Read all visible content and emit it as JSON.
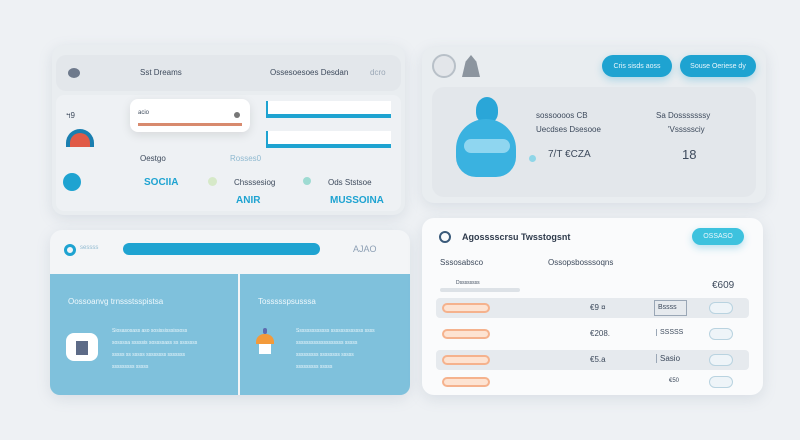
{
  "panel_top_left": {
    "header_title": "Sst Dreams",
    "header_center": "Ossesoesoes Desdan",
    "header_right": "dcro",
    "side_label": "ฯ9",
    "input_value": "acio",
    "label_1": "Oestgo",
    "label_2": "Rosses0",
    "value_1": "SOCIIA",
    "legend_1": "Chsssesiog",
    "legend_2": "Ods Ststsoe",
    "value_2": "ANIR",
    "value_3": "MUSSOINA",
    "colors": {
      "accent": "#1ea3d1",
      "progress": "#d88a6e"
    }
  },
  "panel_top_right": {
    "button_1": "Cris sisds aoss",
    "button_2": "Souse Oeriese dy",
    "info_1_title": "sossoooos CB",
    "info_1_sub": "Uecdses Dsesooe",
    "info_1_value": "7/T €CZA",
    "info_2_title": "Sa Dosssssssy",
    "info_2_sub": "'Vsssssciy",
    "info_2_value": "18"
  },
  "panel_bottom_left": {
    "header_label": "sessss",
    "header_value": "AJAO",
    "section_1_title": "Oossoanvg trnssstsspistsa",
    "section_1_lines": [
      "Siosasosass aso sosississsissoss",
      "sossssa sssssis sossssass ss sssssss",
      "sssss ss sssss ssssssss sssssss",
      "sssssssss sssss"
    ],
    "section_2_title": "Tossssspsusssa",
    "section_2_lines": [
      "Sssssssssssss sssssssssssss ssss",
      "sssssssssssssssssss sssss",
      "sssssssss ssssssss sssss",
      "sssssssss sssss"
    ]
  },
  "panel_bottom_right": {
    "title": "Agosssscrsu Twsstogsnt",
    "action_button": "OSSASO",
    "col_1": "Sssosabsco",
    "col_2": "Ossopsbosssoqns",
    "summary_label": "Dssssssss",
    "summary_value": "€609",
    "rows": [
      {
        "amount": "€9 ¤",
        "status": "Bssss"
      },
      {
        "amount": "€208.",
        "status": "SSSSS"
      },
      {
        "amount": "€5.a",
        "status": "Sasio"
      },
      {
        "amount": "€50",
        "status": ""
      }
    ]
  }
}
